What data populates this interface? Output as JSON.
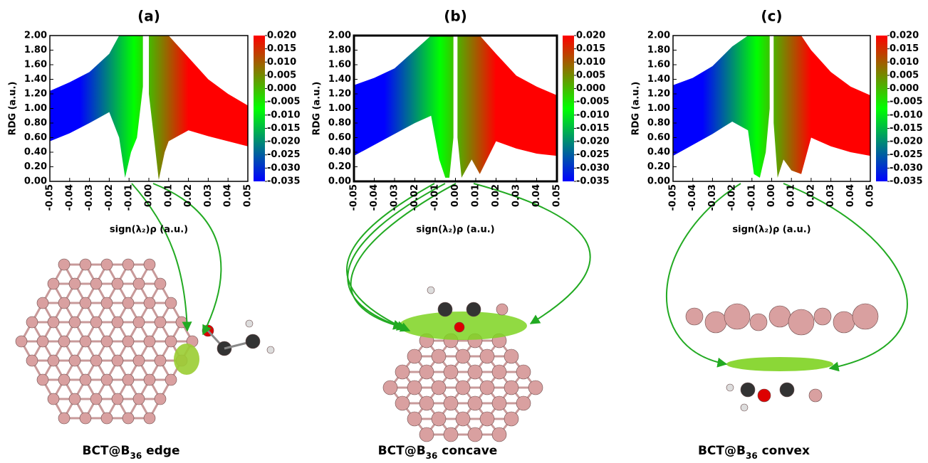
{
  "chart_data": [
    {
      "type": "scatter",
      "title": "(a)",
      "x_label": "sign(λ₂)ρ   (a.u.)",
      "y_label": "RDG   (a.u.)",
      "xlim": [
        -0.05,
        0.05
      ],
      "ylim": [
        0,
        2
      ],
      "xticks": [
        -0.05,
        -0.04,
        -0.03,
        -0.02,
        -0.01,
        {
          "value": 0,
          "label": "0.00"
        },
        0.01,
        0.02,
        0.03,
        0.04,
        0.05
      ],
      "yticks": [
        {
          "value": 0,
          "label": "0.00"
        },
        {
          "value": 0.2,
          "label": "0.20"
        },
        {
          "value": 0.4,
          "label": "0.40"
        },
        {
          "value": 0.6,
          "label": "0.60"
        },
        {
          "value": 0.8,
          "label": "0.80"
        },
        {
          "value": 1,
          "label": "1.00"
        },
        {
          "value": 1.2,
          "label": "1.20"
        },
        {
          "value": 1.4,
          "label": "1.40"
        },
        {
          "value": 1.6,
          "label": "1.60"
        },
        {
          "value": 1.8,
          "label": "1.80"
        },
        {
          "value": 2,
          "label": "2.00"
        }
      ],
      "colorbar": {
        "lim": [
          -0.035,
          0.02
        ],
        "colors": [
          "#0000ff",
          "#00ff00",
          "#ff0000"
        ],
        "ticks": [
          {
            "value": 0.02,
            "label": "0.020"
          },
          {
            "value": 0.015,
            "label": "0.015"
          },
          {
            "value": 0.01,
            "label": "0.010"
          },
          {
            "value": 0.005,
            "label": "0.005"
          },
          {
            "value": 0,
            "label": "0.000"
          },
          {
            "value": -0.005,
            "label": "-0.005"
          },
          {
            "value": -0.01,
            "label": "-0.010"
          },
          {
            "value": -0.015,
            "label": "-0.015"
          },
          {
            "value": -0.02,
            "label": "-0.020"
          },
          {
            "value": -0.025,
            "label": "-0.025"
          },
          {
            "value": -0.03,
            "label": "-0.030"
          },
          {
            "value": -0.035,
            "label": "-0.035"
          }
        ]
      },
      "regions": [
        {
          "x": [
            -0.05,
            -0.04,
            -0.03,
            -0.02,
            -0.015,
            -0.012,
            -0.009,
            -0.006,
            -0.003
          ],
          "upper": [
            1.24,
            1.36,
            1.5,
            1.75,
            2,
            2,
            2,
            2,
            2
          ],
          "lower": [
            0.55,
            0.66,
            0.8,
            0.95,
            0.6,
            0.05,
            0.4,
            0.6,
            1.3
          ]
        },
        {
          "x": [
            0,
            0.003,
            0.005,
            0.008,
            0.01,
            0.02,
            0.03,
            0.04,
            0.05
          ],
          "upper": [
            2,
            2,
            2,
            2,
            2,
            1.7,
            1.4,
            1.2,
            1.04
          ],
          "lower": [
            1.2,
            0.5,
            0.02,
            0.4,
            0.55,
            0.7,
            0.62,
            0.55,
            0.48
          ]
        }
      ],
      "caption": [
        "BCT@B",
        "36",
        " edge"
      ]
    },
    {
      "type": "scatter",
      "title": "(b)",
      "x_label": "sign(λ₂)ρ   (a.u.)",
      "y_label": "RDG   (a.u.)",
      "xlim": [
        -0.05,
        0.05
      ],
      "ylim": [
        0,
        2
      ],
      "xticks": [
        -0.05,
        -0.04,
        -0.03,
        -0.02,
        -0.01,
        {
          "value": 0,
          "label": "0.00"
        },
        0.01,
        0.02,
        0.03,
        0.04,
        0.05
      ],
      "yticks": [
        {
          "value": 0,
          "label": "0.00"
        },
        {
          "value": 0.2,
          "label": "0.20"
        },
        {
          "value": 0.4,
          "label": "0.40"
        },
        {
          "value": 0.6,
          "label": "0.60"
        },
        {
          "value": 0.8,
          "label": "0.80"
        },
        {
          "value": 1,
          "label": "1.00"
        },
        {
          "value": 1.2,
          "label": "1.20"
        },
        {
          "value": 1.4,
          "label": "1.40"
        },
        {
          "value": 1.6,
          "label": "1.60"
        },
        {
          "value": 1.8,
          "label": "1.80"
        },
        {
          "value": 2,
          "label": "2.00"
        }
      ],
      "colorbar": {
        "lim": [
          -0.035,
          0.02
        ],
        "colors": [
          "#0000ff",
          "#00ff00",
          "#ff0000"
        ],
        "ticks": [
          {
            "value": 0.02,
            "label": "0.020"
          },
          {
            "value": 0.015,
            "label": "0.015"
          },
          {
            "value": 0.01,
            "label": "0.010"
          },
          {
            "value": 0.005,
            "label": "0.005"
          },
          {
            "value": 0,
            "label": "0.000"
          },
          {
            "value": -0.005,
            "label": "-0.005"
          },
          {
            "value": -0.01,
            "label": "-0.010"
          },
          {
            "value": -0.015,
            "label": "-0.015"
          },
          {
            "value": -0.02,
            "label": "-0.020"
          },
          {
            "value": -0.025,
            "label": "-0.025"
          },
          {
            "value": -0.03,
            "label": "-0.030"
          },
          {
            "value": -0.035,
            "label": "-0.035"
          }
        ]
      },
      "regions": [
        {
          "x": [
            -0.05,
            -0.04,
            -0.03,
            -0.02,
            -0.012,
            -0.008,
            -0.005,
            -0.003,
            -0.001
          ],
          "upper": [
            1.32,
            1.42,
            1.55,
            1.8,
            2,
            2,
            2,
            2,
            2
          ],
          "lower": [
            0.35,
            0.5,
            0.65,
            0.8,
            0.9,
            0.3,
            0.05,
            0.05,
            0.6
          ]
        },
        {
          "x": [
            0.001,
            0.003,
            0.005,
            0.008,
            0.012,
            0.02,
            0.03,
            0.04,
            0.05
          ],
          "upper": [
            2,
            2,
            2,
            2,
            2,
            1.75,
            1.45,
            1.3,
            1.18
          ],
          "lower": [
            0.6,
            0.05,
            0.15,
            0.3,
            0.1,
            0.55,
            0.45,
            0.38,
            0.35
          ]
        }
      ],
      "caption": [
        "BCT@B",
        "36",
        " concave"
      ]
    },
    {
      "type": "scatter",
      "title": "(c)",
      "x_label": "sign(λ₂)ρ   (a.u.)",
      "y_label": "RDG   (a.u.)",
      "xlim": [
        -0.05,
        0.05
      ],
      "ylim": [
        0,
        2
      ],
      "xticks": [
        -0.05,
        -0.04,
        -0.03,
        -0.02,
        -0.01,
        {
          "value": 0,
          "label": "0.00"
        },
        0.01,
        0.02,
        0.03,
        0.04,
        0.05
      ],
      "yticks": [
        {
          "value": 0,
          "label": "0.00"
        },
        {
          "value": 0.2,
          "label": "0.20"
        },
        {
          "value": 0.4,
          "label": "0.40"
        },
        {
          "value": 0.6,
          "label": "0.60"
        },
        {
          "value": 0.8,
          "label": "0.80"
        },
        {
          "value": 1,
          "label": "1.00"
        },
        {
          "value": 1.2,
          "label": "1.20"
        },
        {
          "value": 1.4,
          "label": "1.40"
        },
        {
          "value": 1.6,
          "label": "1.60"
        },
        {
          "value": 1.8,
          "label": "1.80"
        },
        {
          "value": 2,
          "label": "2.00"
        }
      ],
      "colorbar": {
        "lim": [
          -0.035,
          0.02
        ],
        "colors": [
          "#0000ff",
          "#00ff00",
          "#ff0000"
        ],
        "ticks": [
          {
            "value": 0.02,
            "label": "0.020"
          },
          {
            "value": 0.015,
            "label": "0.015"
          },
          {
            "value": 0.01,
            "label": "0.010"
          },
          {
            "value": 0.005,
            "label": "0.005"
          },
          {
            "value": 0,
            "label": "0.000"
          },
          {
            "value": -0.005,
            "label": "-0.005"
          },
          {
            "value": -0.01,
            "label": "-0.010"
          },
          {
            "value": -0.015,
            "label": "-0.015"
          },
          {
            "value": -0.02,
            "label": "-0.020"
          },
          {
            "value": -0.025,
            "label": "-0.025"
          },
          {
            "value": -0.03,
            "label": "-0.030"
          },
          {
            "value": -0.035,
            "label": "-0.035"
          }
        ]
      },
      "regions": [
        {
          "x": [
            -0.05,
            -0.04,
            -0.03,
            -0.02,
            -0.012,
            -0.009,
            -0.006,
            -0.003,
            -0.001
          ],
          "upper": [
            1.32,
            1.42,
            1.58,
            1.85,
            2,
            2,
            2,
            2,
            2
          ],
          "lower": [
            0.35,
            0.5,
            0.65,
            0.82,
            0.7,
            0.1,
            0.05,
            0.4,
            1.0
          ]
        },
        {
          "x": [
            0.001,
            0.003,
            0.006,
            0.01,
            0.015,
            0.02,
            0.03,
            0.04,
            0.05
          ],
          "upper": [
            2,
            2,
            2,
            2,
            2,
            1.8,
            1.5,
            1.3,
            1.18
          ],
          "lower": [
            0.8,
            0.05,
            0.3,
            0.15,
            0.1,
            0.6,
            0.48,
            0.4,
            0.35
          ]
        }
      ],
      "caption": [
        "BCT@B",
        "36",
        " convex"
      ]
    }
  ]
}
